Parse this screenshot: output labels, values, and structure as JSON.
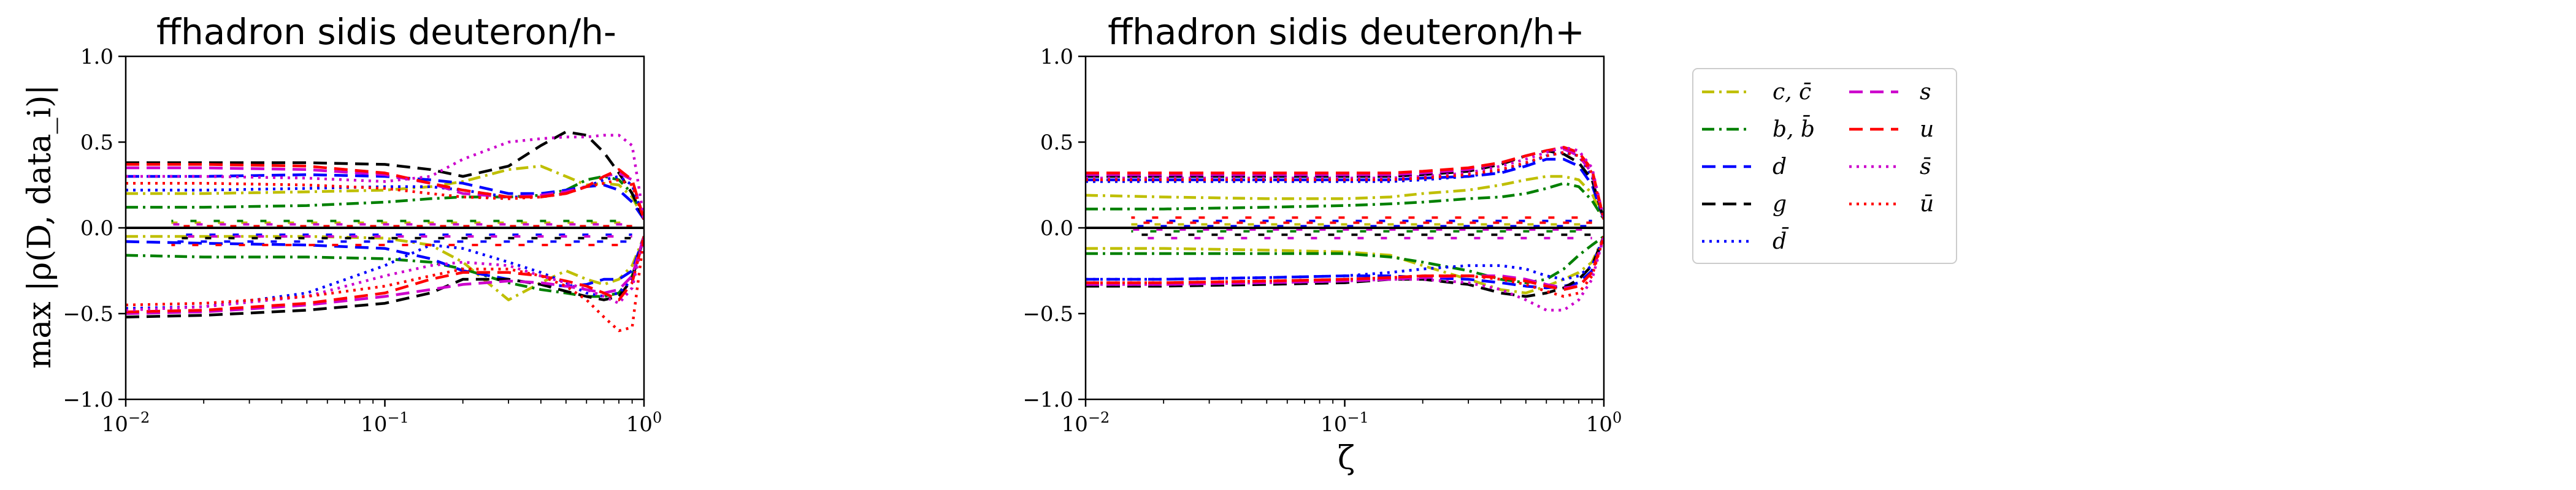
{
  "chart_data": [
    {
      "type": "line",
      "title": "ffhadron sidis deuteron/h-",
      "xlabel": "",
      "ylabel": "max |ρ(D, data_i)|",
      "xscale": "log",
      "xlim": [
        0.01,
        1
      ],
      "ylim": [
        -1.0,
        1.0
      ],
      "x_ticks": [
        "10^{-2}",
        "10^{-1}",
        "10^{0}"
      ],
      "y_ticks": [
        "1.0",
        "0.5",
        "0.0",
        "−0.5",
        "−1.0"
      ],
      "x": [
        0.01,
        0.02,
        0.05,
        0.1,
        0.15,
        0.2,
        0.3,
        0.4,
        0.5,
        0.6,
        0.7,
        0.8,
        0.9,
        1.0
      ],
      "series": [
        {
          "name": "c,c̄",
          "color": "#bfbf00",
          "dash": "dashdot",
          "pos": [
            0.2,
            0.2,
            0.21,
            0.22,
            0.24,
            0.27,
            0.34,
            0.36,
            0.3,
            0.25,
            0.26,
            0.25,
            0.18,
            0.05
          ],
          "neg": [
            -0.05,
            -0.05,
            -0.05,
            -0.06,
            -0.1,
            -0.2,
            -0.42,
            -0.32,
            -0.25,
            -0.3,
            -0.33,
            -0.3,
            -0.22,
            -0.05
          ]
        },
        {
          "name": "b,b̄",
          "color": "#008000",
          "dash": "dashdot",
          "pos": [
            0.12,
            0.12,
            0.13,
            0.15,
            0.17,
            0.18,
            0.18,
            0.19,
            0.22,
            0.28,
            0.3,
            0.28,
            0.2,
            0.05
          ],
          "neg": [
            -0.16,
            -0.17,
            -0.17,
            -0.18,
            -0.2,
            -0.24,
            -0.32,
            -0.36,
            -0.38,
            -0.4,
            -0.4,
            -0.38,
            -0.28,
            -0.05
          ]
        },
        {
          "name": "d",
          "color": "#0000ff",
          "dash": "dashed",
          "pos": [
            0.3,
            0.3,
            0.31,
            0.3,
            0.28,
            0.26,
            0.2,
            0.2,
            0.22,
            0.24,
            0.25,
            0.22,
            0.15,
            0.05
          ],
          "neg": [
            -0.08,
            -0.09,
            -0.1,
            -0.12,
            -0.18,
            -0.25,
            -0.3,
            -0.33,
            -0.34,
            -0.33,
            -0.3,
            -0.3,
            -0.25,
            -0.05
          ]
        },
        {
          "name": "g",
          "color": "#000000",
          "dash": "dashed",
          "pos": [
            0.38,
            0.38,
            0.38,
            0.37,
            0.34,
            0.3,
            0.36,
            0.48,
            0.56,
            0.54,
            0.44,
            0.32,
            0.2,
            0.05
          ],
          "neg": [
            -0.52,
            -0.51,
            -0.48,
            -0.44,
            -0.38,
            -0.3,
            -0.3,
            -0.33,
            -0.37,
            -0.4,
            -0.42,
            -0.4,
            -0.3,
            -0.05
          ]
        },
        {
          "name": "d̄",
          "color": "#0000ff",
          "dash": "dotted",
          "pos": [
            0.22,
            0.22,
            0.23,
            0.24,
            0.24,
            0.22,
            0.18,
            0.18,
            0.2,
            0.24,
            0.28,
            0.3,
            0.25,
            0.05
          ],
          "neg": [
            -0.47,
            -0.46,
            -0.38,
            -0.22,
            -0.1,
            -0.12,
            -0.2,
            -0.26,
            -0.32,
            -0.38,
            -0.4,
            -0.38,
            -0.3,
            -0.05
          ]
        },
        {
          "name": "s",
          "color": "#cc00cc",
          "dash": "dashed",
          "pos": [
            0.35,
            0.35,
            0.34,
            0.31,
            0.26,
            0.2,
            0.18,
            0.19,
            0.21,
            0.24,
            0.3,
            0.32,
            0.28,
            0.05
          ],
          "neg": [
            -0.5,
            -0.49,
            -0.45,
            -0.4,
            -0.36,
            -0.33,
            -0.31,
            -0.32,
            -0.34,
            -0.36,
            -0.38,
            -0.36,
            -0.28,
            -0.05
          ]
        },
        {
          "name": "u",
          "color": "#ff0000",
          "dash": "dashed",
          "pos": [
            0.37,
            0.37,
            0.36,
            0.32,
            0.26,
            0.22,
            0.18,
            0.18,
            0.2,
            0.24,
            0.3,
            0.34,
            0.28,
            0.05
          ],
          "neg": [
            -0.49,
            -0.48,
            -0.44,
            -0.38,
            -0.3,
            -0.26,
            -0.26,
            -0.28,
            -0.31,
            -0.34,
            -0.38,
            -0.42,
            -0.32,
            -0.05
          ]
        },
        {
          "name": "s̄",
          "color": "#cc00cc",
          "dash": "dotted",
          "pos": [
            0.3,
            0.3,
            0.29,
            0.27,
            0.3,
            0.4,
            0.5,
            0.52,
            0.53,
            0.53,
            0.54,
            0.54,
            0.48,
            0.05
          ],
          "neg": [
            -0.48,
            -0.46,
            -0.4,
            -0.28,
            -0.22,
            -0.2,
            -0.22,
            -0.28,
            -0.32,
            -0.36,
            -0.4,
            -0.44,
            -0.35,
            -0.05
          ]
        },
        {
          "name": "ū",
          "color": "#ff0000",
          "dash": "dotted",
          "pos": [
            0.26,
            0.26,
            0.25,
            0.23,
            0.2,
            0.18,
            0.17,
            0.18,
            0.2,
            0.24,
            0.26,
            0.28,
            0.25,
            0.05
          ],
          "neg": [
            -0.45,
            -0.44,
            -0.4,
            -0.34,
            -0.28,
            -0.24,
            -0.24,
            -0.28,
            -0.34,
            -0.42,
            -0.52,
            -0.6,
            -0.58,
            -0.05
          ]
        }
      ],
      "near_zero_markers": [
        0.03,
        0.04,
        -0.04,
        -0.06,
        -0.08,
        0.02,
        -0.1,
        -0.05,
        0.01,
        -0.03
      ]
    },
    {
      "type": "line",
      "title": "ffhadron sidis deuteron/h+",
      "xlabel": "ζ",
      "ylabel": "",
      "xscale": "log",
      "xlim": [
        0.01,
        1
      ],
      "ylim": [
        -1.0,
        1.0
      ],
      "x_ticks": [
        "10^{-2}",
        "10^{-1}",
        "10^{0}"
      ],
      "y_ticks": [
        "1.0",
        "0.5",
        "0.0",
        "−0.5",
        "−1.0"
      ],
      "x": [
        0.01,
        0.02,
        0.05,
        0.1,
        0.15,
        0.2,
        0.3,
        0.4,
        0.5,
        0.6,
        0.7,
        0.8,
        0.9,
        1.0
      ],
      "series": [
        {
          "name": "c,c̄",
          "color": "#bfbf00",
          "dash": "dashdot",
          "pos": [
            0.19,
            0.18,
            0.17,
            0.17,
            0.18,
            0.2,
            0.22,
            0.25,
            0.28,
            0.3,
            0.3,
            0.28,
            0.2,
            0.05
          ],
          "neg": [
            -0.12,
            -0.12,
            -0.13,
            -0.14,
            -0.16,
            -0.22,
            -0.3,
            -0.36,
            -0.38,
            -0.34,
            -0.3,
            -0.26,
            -0.2,
            -0.05
          ]
        },
        {
          "name": "b,b̄",
          "color": "#008000",
          "dash": "dashdot",
          "pos": [
            0.11,
            0.11,
            0.12,
            0.13,
            0.14,
            0.15,
            0.17,
            0.18,
            0.2,
            0.23,
            0.26,
            0.24,
            0.16,
            0.05
          ],
          "neg": [
            -0.15,
            -0.15,
            -0.15,
            -0.15,
            -0.17,
            -0.2,
            -0.25,
            -0.3,
            -0.32,
            -0.3,
            -0.24,
            -0.16,
            -0.1,
            -0.05
          ]
        },
        {
          "name": "d",
          "color": "#0000ff",
          "dash": "dashed",
          "pos": [
            0.28,
            0.28,
            0.28,
            0.28,
            0.28,
            0.29,
            0.3,
            0.32,
            0.36,
            0.4,
            0.4,
            0.36,
            0.25,
            0.05
          ],
          "neg": [
            -0.3,
            -0.3,
            -0.29,
            -0.28,
            -0.28,
            -0.29,
            -0.3,
            -0.32,
            -0.34,
            -0.35,
            -0.34,
            -0.32,
            -0.25,
            -0.05
          ]
        },
        {
          "name": "g",
          "color": "#000000",
          "dash": "dashed",
          "pos": [
            0.3,
            0.3,
            0.3,
            0.3,
            0.3,
            0.31,
            0.33,
            0.37,
            0.42,
            0.45,
            0.43,
            0.38,
            0.28,
            0.05
          ],
          "neg": [
            -0.34,
            -0.34,
            -0.33,
            -0.32,
            -0.3,
            -0.3,
            -0.33,
            -0.38,
            -0.4,
            -0.38,
            -0.35,
            -0.3,
            -0.22,
            -0.05
          ]
        },
        {
          "name": "d̄",
          "color": "#0000ff",
          "dash": "dotted",
          "pos": [
            0.27,
            0.27,
            0.27,
            0.27,
            0.27,
            0.28,
            0.3,
            0.33,
            0.37,
            0.42,
            0.44,
            0.42,
            0.3,
            0.05
          ],
          "neg": [
            -0.3,
            -0.3,
            -0.29,
            -0.28,
            -0.26,
            -0.24,
            -0.22,
            -0.22,
            -0.24,
            -0.28,
            -0.3,
            -0.28,
            -0.22,
            -0.05
          ]
        },
        {
          "name": "s",
          "color": "#cc00cc",
          "dash": "dashed",
          "pos": [
            0.31,
            0.31,
            0.31,
            0.31,
            0.31,
            0.32,
            0.34,
            0.38,
            0.42,
            0.45,
            0.46,
            0.42,
            0.32,
            0.05
          ],
          "neg": [
            -0.33,
            -0.33,
            -0.32,
            -0.31,
            -0.3,
            -0.29,
            -0.28,
            -0.28,
            -0.3,
            -0.33,
            -0.35,
            -0.34,
            -0.26,
            -0.05
          ]
        },
        {
          "name": "u",
          "color": "#ff0000",
          "dash": "dashed",
          "pos": [
            0.32,
            0.32,
            0.32,
            0.32,
            0.32,
            0.33,
            0.35,
            0.38,
            0.42,
            0.45,
            0.47,
            0.44,
            0.34,
            0.05
          ],
          "neg": [
            -0.32,
            -0.32,
            -0.31,
            -0.3,
            -0.29,
            -0.28,
            -0.28,
            -0.29,
            -0.31,
            -0.34,
            -0.36,
            -0.34,
            -0.26,
            -0.05
          ]
        },
        {
          "name": "s̄",
          "color": "#cc00cc",
          "dash": "dotted",
          "pos": [
            0.29,
            0.29,
            0.29,
            0.29,
            0.29,
            0.3,
            0.32,
            0.36,
            0.4,
            0.44,
            0.47,
            0.45,
            0.35,
            0.05
          ],
          "neg": [
            -0.33,
            -0.33,
            -0.32,
            -0.31,
            -0.3,
            -0.3,
            -0.32,
            -0.36,
            -0.42,
            -0.48,
            -0.48,
            -0.42,
            -0.3,
            -0.05
          ]
        },
        {
          "name": "ū",
          "color": "#ff0000",
          "dash": "dotted",
          "pos": [
            0.28,
            0.28,
            0.28,
            0.28,
            0.28,
            0.29,
            0.31,
            0.34,
            0.38,
            0.42,
            0.44,
            0.42,
            0.32,
            0.05
          ],
          "neg": [
            -0.32,
            -0.32,
            -0.31,
            -0.3,
            -0.29,
            -0.28,
            -0.28,
            -0.3,
            -0.33,
            -0.37,
            -0.4,
            -0.38,
            -0.28,
            -0.05
          ]
        }
      ],
      "near_zero_markers": [
        0.02,
        -0.02,
        0.04,
        -0.04,
        0.01,
        -0.01,
        0.06,
        -0.06,
        0.03,
        -0.03
      ]
    }
  ],
  "legend": {
    "placement": "right",
    "columns": [
      [
        {
          "label": "c, c̄",
          "color": "#bfbf00",
          "dash": "dashdot"
        },
        {
          "label": "b, b̄",
          "color": "#008000",
          "dash": "dashdot"
        },
        {
          "label": "d",
          "color": "#0000ff",
          "dash": "dashed"
        },
        {
          "label": "g",
          "color": "#000000",
          "dash": "dashed"
        },
        {
          "label": "d̄",
          "color": "#0000ff",
          "dash": "dotted"
        }
      ],
      [
        {
          "label": "s",
          "color": "#cc00cc",
          "dash": "dashed"
        },
        {
          "label": "u",
          "color": "#ff0000",
          "dash": "dashed"
        },
        {
          "label": "s̄",
          "color": "#cc00cc",
          "dash": "dotted"
        },
        {
          "label": "ū",
          "color": "#ff0000",
          "dash": "dotted"
        }
      ]
    ]
  }
}
